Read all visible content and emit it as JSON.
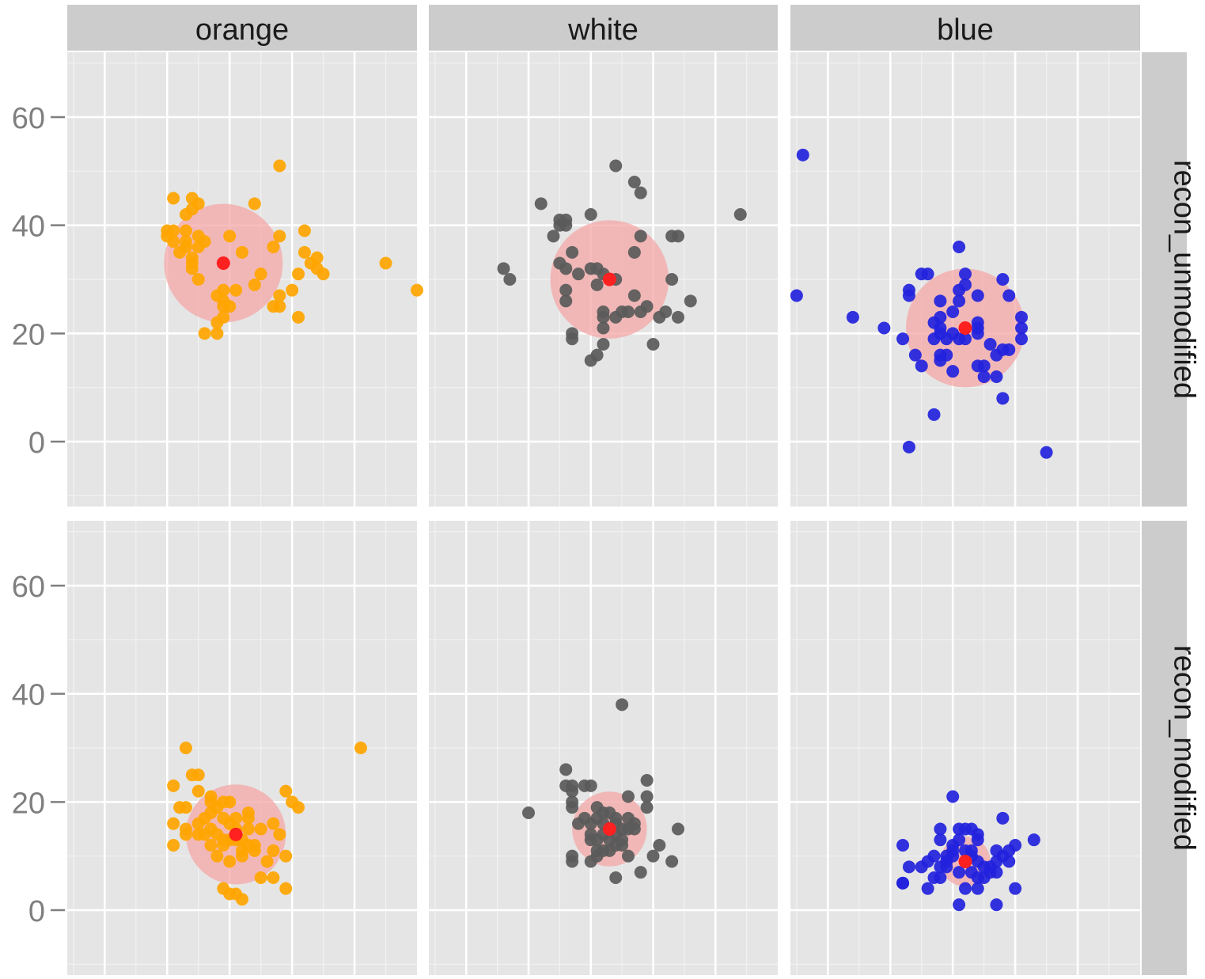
{
  "chart_data": {
    "type": "scatter",
    "facet_columns": [
      "orange",
      "white",
      "blue"
    ],
    "facet_rows": [
      "recon_unmodified",
      "recon_modified"
    ],
    "y_axis": {
      "ticks": [
        0,
        20,
        40,
        60
      ],
      "ylim": [
        72,
        -12
      ],
      "reversed": true
    },
    "x_axis": {
      "xlim": [
        -6,
        50
      ],
      "tick_labels_visible": false
    },
    "colors": {
      "orange": "#ffa500",
      "white": "#5a5a5a",
      "blue": "#2222dd",
      "centroid": "#ff2020",
      "circle": "#f4a7a7",
      "panel_bg": "#e5e5e5",
      "strip_bg": "#cccccc"
    },
    "panels": [
      {
        "row": "recon_unmodified",
        "col": "orange",
        "centroid": [
          19,
          33
        ],
        "radius": 9.5,
        "points": [
          [
            16,
            20
          ],
          [
            18,
            20
          ],
          [
            18,
            22
          ],
          [
            19,
            23
          ],
          [
            19,
            25
          ],
          [
            20,
            25
          ],
          [
            19,
            26
          ],
          [
            18,
            27
          ],
          [
            19,
            28
          ],
          [
            21,
            28
          ],
          [
            15,
            30
          ],
          [
            14,
            32
          ],
          [
            14,
            33
          ],
          [
            14,
            34
          ],
          [
            12,
            35
          ],
          [
            13,
            36
          ],
          [
            15,
            36
          ],
          [
            11,
            37
          ],
          [
            13,
            37
          ],
          [
            16,
            37
          ],
          [
            15,
            38
          ],
          [
            10,
            38
          ],
          [
            10,
            39
          ],
          [
            11,
            39
          ],
          [
            13,
            39
          ],
          [
            20,
            38
          ],
          [
            22,
            35
          ],
          [
            24,
            29
          ],
          [
            25,
            31
          ],
          [
            27,
            25
          ],
          [
            28,
            25
          ],
          [
            28,
            27
          ],
          [
            30,
            28
          ],
          [
            31,
            23
          ],
          [
            31,
            31
          ],
          [
            27,
            36
          ],
          [
            28,
            38
          ],
          [
            32,
            35
          ],
          [
            32,
            39
          ],
          [
            33,
            33
          ],
          [
            34,
            32
          ],
          [
            34,
            34
          ],
          [
            35,
            31
          ],
          [
            13,
            42
          ],
          [
            14,
            43
          ],
          [
            15,
            44
          ],
          [
            11,
            45
          ],
          [
            14,
            45
          ],
          [
            24,
            44
          ],
          [
            28,
            51
          ],
          [
            45,
            33
          ],
          [
            50,
            28
          ]
        ]
      },
      {
        "row": "recon_unmodified",
        "col": "white",
        "centroid": [
          23,
          30
        ],
        "radius": 9.5,
        "points": [
          [
            20,
            15
          ],
          [
            21,
            16
          ],
          [
            22,
            18
          ],
          [
            30,
            18
          ],
          [
            17,
            19
          ],
          [
            17,
            20
          ],
          [
            22,
            21
          ],
          [
            22,
            23
          ],
          [
            24,
            23
          ],
          [
            26,
            24
          ],
          [
            22,
            24
          ],
          [
            25,
            24
          ],
          [
            28,
            24
          ],
          [
            29,
            25
          ],
          [
            34,
            23
          ],
          [
            31,
            23
          ],
          [
            32,
            24
          ],
          [
            16,
            26
          ],
          [
            16,
            28
          ],
          [
            21,
            29
          ],
          [
            27,
            27
          ],
          [
            18,
            31
          ],
          [
            20,
            32
          ],
          [
            21,
            32
          ],
          [
            22,
            31
          ],
          [
            24,
            30
          ],
          [
            16,
            32
          ],
          [
            15,
            33
          ],
          [
            7,
            30
          ],
          [
            6,
            32
          ],
          [
            17,
            35
          ],
          [
            27,
            35
          ],
          [
            14,
            38
          ],
          [
            15,
            40
          ],
          [
            16,
            40
          ],
          [
            15,
            41
          ],
          [
            16,
            41
          ],
          [
            20,
            42
          ],
          [
            28,
            38
          ],
          [
            33,
            38
          ],
          [
            34,
            38
          ],
          [
            36,
            26
          ],
          [
            33,
            30
          ],
          [
            12,
            44
          ],
          [
            28,
            46
          ],
          [
            27,
            48
          ],
          [
            24,
            51
          ],
          [
            44,
            42
          ]
        ]
      },
      {
        "row": "recon_unmodified",
        "col": "blue",
        "centroid": [
          22,
          21
        ],
        "radius": 9.5,
        "points": [
          [
            13,
            -1
          ],
          [
            35,
            -2
          ],
          [
            17,
            5
          ],
          [
            28,
            8
          ],
          [
            25,
            12
          ],
          [
            27,
            12
          ],
          [
            24,
            14
          ],
          [
            25,
            14
          ],
          [
            20,
            13
          ],
          [
            15,
            14
          ],
          [
            18,
            15
          ],
          [
            14,
            16
          ],
          [
            18,
            16
          ],
          [
            19,
            16
          ],
          [
            27,
            16
          ],
          [
            28,
            17
          ],
          [
            29,
            17
          ],
          [
            26,
            18
          ],
          [
            12,
            19
          ],
          [
            17,
            19
          ],
          [
            18,
            20
          ],
          [
            19,
            19
          ],
          [
            20,
            20
          ],
          [
            21,
            19
          ],
          [
            22,
            19
          ],
          [
            24,
            20
          ],
          [
            24,
            21
          ],
          [
            24,
            22
          ],
          [
            18,
            21
          ],
          [
            9,
            21
          ],
          [
            31,
            19
          ],
          [
            31,
            21
          ],
          [
            31,
            23
          ],
          [
            4,
            23
          ],
          [
            17,
            22
          ],
          [
            18,
            23
          ],
          [
            20,
            24
          ],
          [
            21,
            26
          ],
          [
            21,
            28
          ],
          [
            22,
            29
          ],
          [
            18,
            26
          ],
          [
            13,
            28
          ],
          [
            13,
            27
          ],
          [
            24,
            27
          ],
          [
            29,
            27
          ],
          [
            16,
            31
          ],
          [
            15,
            31
          ],
          [
            22,
            31
          ],
          [
            28,
            30
          ],
          [
            21,
            36
          ],
          [
            -5,
            27
          ],
          [
            -4,
            53
          ]
        ]
      },
      {
        "row": "recon_modified",
        "col": "orange",
        "centroid": [
          21,
          14
        ],
        "radius": 8,
        "points": [
          [
            22,
            2
          ],
          [
            20,
            3
          ],
          [
            21,
            3
          ],
          [
            19,
            4
          ],
          [
            29,
            4
          ],
          [
            25,
            6
          ],
          [
            27,
            6
          ],
          [
            20,
            9
          ],
          [
            22,
            10
          ],
          [
            22,
            11
          ],
          [
            26,
            9
          ],
          [
            18,
            10
          ],
          [
            17,
            12
          ],
          [
            16,
            14
          ],
          [
            17,
            15
          ],
          [
            18,
            14
          ],
          [
            19,
            13
          ],
          [
            19,
            12
          ],
          [
            20,
            13
          ],
          [
            21,
            13
          ],
          [
            22,
            13
          ],
          [
            23,
            12
          ],
          [
            24,
            12
          ],
          [
            24,
            11
          ],
          [
            27,
            11
          ],
          [
            29,
            10
          ],
          [
            28,
            14
          ],
          [
            27,
            16
          ],
          [
            25,
            15
          ],
          [
            23,
            15
          ],
          [
            21,
            15
          ],
          [
            20,
            16
          ],
          [
            21,
            17
          ],
          [
            23,
            17
          ],
          [
            23,
            18
          ],
          [
            19,
            17
          ],
          [
            17,
            18
          ],
          [
            18,
            19
          ],
          [
            20,
            20
          ],
          [
            17,
            20
          ],
          [
            17,
            21
          ],
          [
            19,
            20
          ],
          [
            15,
            14
          ],
          [
            15,
            16
          ],
          [
            16,
            17
          ],
          [
            13,
            14
          ],
          [
            13,
            15
          ],
          [
            11,
            12
          ],
          [
            11,
            16
          ],
          [
            12,
            19
          ],
          [
            13,
            19
          ],
          [
            15,
            22
          ],
          [
            11,
            23
          ],
          [
            14,
            25
          ],
          [
            15,
            25
          ],
          [
            13,
            30
          ],
          [
            29,
            22
          ],
          [
            31,
            19
          ],
          [
            30,
            20
          ],
          [
            41,
            30
          ]
        ]
      },
      {
        "row": "recon_modified",
        "col": "white",
        "centroid": [
          23,
          15
        ],
        "radius": 6,
        "points": [
          [
            24,
            6
          ],
          [
            28,
            7
          ],
          [
            30,
            10
          ],
          [
            33,
            9
          ],
          [
            26,
            10
          ],
          [
            17,
            9
          ],
          [
            17,
            10
          ],
          [
            20,
            9
          ],
          [
            21,
            10
          ],
          [
            21,
            11
          ],
          [
            22,
            11
          ],
          [
            23,
            11
          ],
          [
            24,
            12
          ],
          [
            25,
            12
          ],
          [
            25,
            13
          ],
          [
            23,
            13
          ],
          [
            21,
            13
          ],
          [
            20,
            13
          ],
          [
            20,
            14
          ],
          [
            22,
            14
          ],
          [
            24,
            14
          ],
          [
            25,
            15
          ],
          [
            26,
            15
          ],
          [
            27,
            15
          ],
          [
            27,
            16
          ],
          [
            24,
            16
          ],
          [
            22,
            16
          ],
          [
            20,
            16
          ],
          [
            18,
            16
          ],
          [
            19,
            17
          ],
          [
            21,
            17
          ],
          [
            22,
            18
          ],
          [
            23,
            18
          ],
          [
            24,
            17
          ],
          [
            26,
            17
          ],
          [
            34,
            15
          ],
          [
            31,
            12
          ],
          [
            17,
            19
          ],
          [
            17,
            20
          ],
          [
            17,
            22
          ],
          [
            21,
            19
          ],
          [
            26,
            21
          ],
          [
            29,
            21
          ],
          [
            29,
            19
          ],
          [
            10,
            18
          ],
          [
            16,
            23
          ],
          [
            17,
            23
          ],
          [
            16,
            26
          ],
          [
            19,
            23
          ],
          [
            20,
            23
          ],
          [
            29,
            24
          ],
          [
            25,
            38
          ]
        ]
      },
      {
        "row": "recon_modified",
        "col": "blue",
        "centroid": [
          22,
          9
        ],
        "radius": 4,
        "points": [
          [
            21,
            1
          ],
          [
            27,
            1
          ],
          [
            16,
            4
          ],
          [
            22,
            4
          ],
          [
            24,
            4
          ],
          [
            30,
            4
          ],
          [
            12,
            5
          ],
          [
            12,
            5
          ],
          [
            17,
            6
          ],
          [
            18,
            6
          ],
          [
            21,
            7
          ],
          [
            23,
            7
          ],
          [
            24,
            6
          ],
          [
            25,
            6
          ],
          [
            26,
            7
          ],
          [
            27,
            7
          ],
          [
            26,
            8
          ],
          [
            25,
            8
          ],
          [
            24,
            9
          ],
          [
            23,
            10
          ],
          [
            22,
            11
          ],
          [
            23,
            11
          ],
          [
            20,
            10
          ],
          [
            19,
            9
          ],
          [
            19,
            8
          ],
          [
            18,
            8
          ],
          [
            19,
            10
          ],
          [
            20,
            11
          ],
          [
            20,
            12
          ],
          [
            21,
            13
          ],
          [
            18,
            13
          ],
          [
            15,
            8
          ],
          [
            16,
            9
          ],
          [
            17,
            10
          ],
          [
            13,
            8
          ],
          [
            27,
            9
          ],
          [
            28,
            10
          ],
          [
            29,
            11
          ],
          [
            30,
            12
          ],
          [
            29,
            9
          ],
          [
            27,
            11
          ],
          [
            12,
            12
          ],
          [
            24,
            13
          ],
          [
            24,
            14
          ],
          [
            23,
            15
          ],
          [
            22,
            15
          ],
          [
            21,
            15
          ],
          [
            18,
            15
          ],
          [
            33,
            13
          ],
          [
            28,
            17
          ],
          [
            20,
            21
          ]
        ]
      }
    ]
  }
}
